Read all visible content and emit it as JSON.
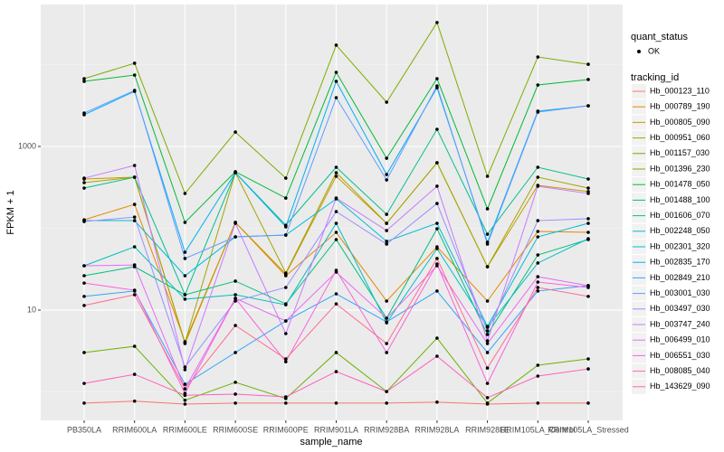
{
  "chart_data": {
    "type": "line",
    "x_label": "sample_name",
    "y_label": "FPKM + 1",
    "log_y": true,
    "grid": true,
    "point_legend": {
      "title": "quant_status",
      "labels": [
        "OK"
      ]
    },
    "legend_title": "tracking_id",
    "categories": [
      "PB350LA",
      "RRIM600LA",
      "RRIM600LE",
      "RRIM600SE",
      "RRIM600PE",
      "RRIM901LA",
      "RRIM928BA",
      "RRIM928LA",
      "RRIM928LE",
      "RRIM105LA_Control",
      "RRIM105LA_Stressed"
    ],
    "ylim": [
      0.449,
      54300
    ],
    "yticks": [
      10,
      1000
    ],
    "series": [
      {
        "name": "Hb_000123_110",
        "color": "#F8766D",
        "values": [
          0.73,
          0.77,
          0.71,
          0.73,
          0.73,
          0.73,
          0.73,
          0.75,
          0.71,
          0.73,
          0.73
        ]
      },
      {
        "name": "Hb_000789_190",
        "color": "#E58700",
        "values": [
          127,
          196,
          4.1,
          118,
          26.3,
          89.1,
          12.9,
          59.3,
          12.9,
          91.4,
          89.1
        ]
      },
      {
        "name": "Hb_000805_090",
        "color": "#C99800",
        "values": [
          400,
          421,
          3.9,
          118,
          27.7,
          432,
          115,
          632,
          33.9,
          335,
          281
        ]
      },
      {
        "name": "Hb_000951_060",
        "color": "#A3A500",
        "values": [
          361,
          421,
          4,
          478,
          28.4,
          478,
          115,
          632,
          33.9,
          421,
          310
        ]
      },
      {
        "name": "Hb_001157_030",
        "color": "#6BB100",
        "values": [
          3.03,
          3.61,
          0.79,
          1.31,
          0.83,
          3.03,
          1.01,
          4.54,
          0.73,
          2.12,
          2.53
        ]
      },
      {
        "name": "Hb_001396_230",
        "color": "#7CAE00",
        "values": [
          6740,
          10400,
          266,
          1500,
          410,
          17300,
          3480,
          32700,
          432,
          12400,
          10100
        ]
      },
      {
        "name": "Hb_001478_050",
        "color": "#00BA38",
        "values": [
          6250,
          7460,
          118,
          491,
          234,
          8050,
          718,
          6740,
          173,
          5640,
          6580
        ]
      },
      {
        "name": "Hb_001488_100",
        "color": "#00BF7D",
        "values": [
          26.3,
          33.9,
          15.4,
          22.6,
          11.9,
          72.8,
          7.96,
          98.7,
          5.04,
          47.2,
          72.8
        ]
      },
      {
        "name": "Hb_001606_070",
        "color": "#00C08B",
        "values": [
          310,
          421,
          15.4,
          478,
          109,
          557,
          148,
          1620,
          84.7,
          557,
          400
        ]
      },
      {
        "name": "Hb_002248_050",
        "color": "#00BFC4",
        "values": [
          34.8,
          59.3,
          13.6,
          15.4,
          11.6,
          115,
          7,
          56.4,
          6.17,
          37.6,
          74.6
        ]
      },
      {
        "name": "Hb_002301_320",
        "color": "#00BCD8",
        "values": [
          124,
          124,
          26.3,
          78.5,
          82.6,
          229,
          69.2,
          115,
          6.32,
          78.5,
          115
        ]
      },
      {
        "name": "Hb_002835_170",
        "color": "#00B0F6",
        "values": [
          2440,
          4720,
          50.9,
          478,
          104,
          6250,
          454,
          5220,
          67.5,
          2700,
          3140
        ]
      },
      {
        "name": "Hb_002849_210",
        "color": "#35A2FF",
        "values": [
          14.7,
          17.1,
          1.24,
          3.03,
          7.37,
          15.8,
          7.18,
          17.1,
          3.03,
          17.1,
          19.9
        ]
      },
      {
        "name": "Hb_003001_030",
        "color": "#619CFF",
        "values": [
          2560,
          4840,
          42.7,
          78.5,
          82.6,
          3950,
          390,
          5500,
          64.1,
          2630,
          3140
        ]
      },
      {
        "name": "Hb_003497_030",
        "color": "#9590FF",
        "values": [
          121,
          137,
          2.01,
          12.9,
          18.9,
          160,
          64.1,
          201,
          5.57,
          124,
          131
        ]
      },
      {
        "name": "Hb_003747_240",
        "color": "#C77CFF",
        "values": [
          410,
          586,
          1.87,
          115,
          5.16,
          234,
          93.8,
          327,
          4.21,
          327,
          266
        ]
      },
      {
        "name": "Hb_006499_010",
        "color": "#E76BF3",
        "values": [
          34.8,
          35.6,
          1.09,
          13.9,
          7.37,
          29.1,
          7.96,
          34.8,
          3.9,
          25.6,
          19.9
        ]
      },
      {
        "name": "Hb_006551_030",
        "color": "#FA62DB",
        "values": [
          21.4,
          17.5,
          0.96,
          13.9,
          2.34,
          30.6,
          3.03,
          36.6,
          1.27,
          22,
          18.9
        ]
      },
      {
        "name": "Hb_008085_040",
        "color": "#FF62BC",
        "values": [
          1.27,
          1.64,
          0.91,
          0.94,
          0.87,
          1.77,
          1.01,
          2.73,
          0.85,
          1.56,
          1.91
        ]
      },
      {
        "name": "Hb_143629_090",
        "color": "#FF6C91",
        "values": [
          11.4,
          15.4,
          1.09,
          6.49,
          2.53,
          11.9,
          3.9,
          42.7,
          1.96,
          18.9,
          14.7
        ]
      }
    ]
  }
}
